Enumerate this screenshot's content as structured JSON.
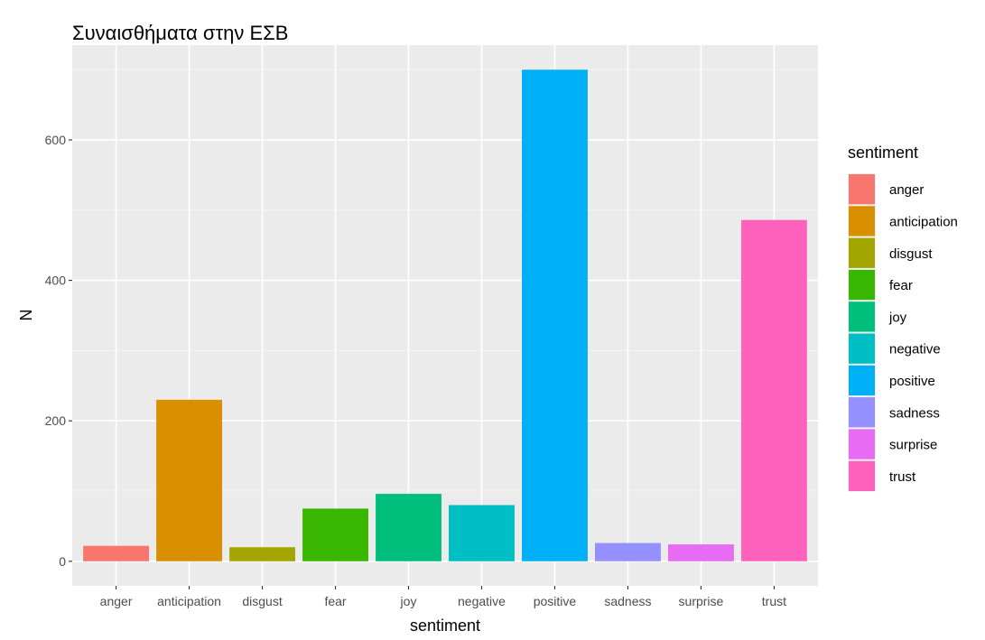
{
  "chart_data": {
    "type": "bar",
    "title": "Συναισθήματα στην ΕΣΒ",
    "xlabel": "sentiment",
    "ylabel": "N",
    "categories": [
      "anger",
      "anticipation",
      "disgust",
      "fear",
      "joy",
      "negative",
      "positive",
      "sadness",
      "surprise",
      "trust"
    ],
    "values": [
      22,
      230,
      20,
      75,
      96,
      80,
      700,
      26,
      24,
      486
    ],
    "colors": [
      "#F8766D",
      "#D89000",
      "#A3A500",
      "#39B600",
      "#00BF7D",
      "#00BFC4",
      "#00B0F6",
      "#9590FF",
      "#E76BF3",
      "#FF62BC"
    ],
    "ylim": [
      -35,
      735
    ],
    "yticks": [
      0,
      200,
      400,
      600
    ],
    "grid": true,
    "legend": {
      "title": "sentiment",
      "placement": "right",
      "entries": [
        "anger",
        "anticipation",
        "disgust",
        "fear",
        "joy",
        "negative",
        "positive",
        "sadness",
        "surprise",
        "trust"
      ]
    }
  }
}
